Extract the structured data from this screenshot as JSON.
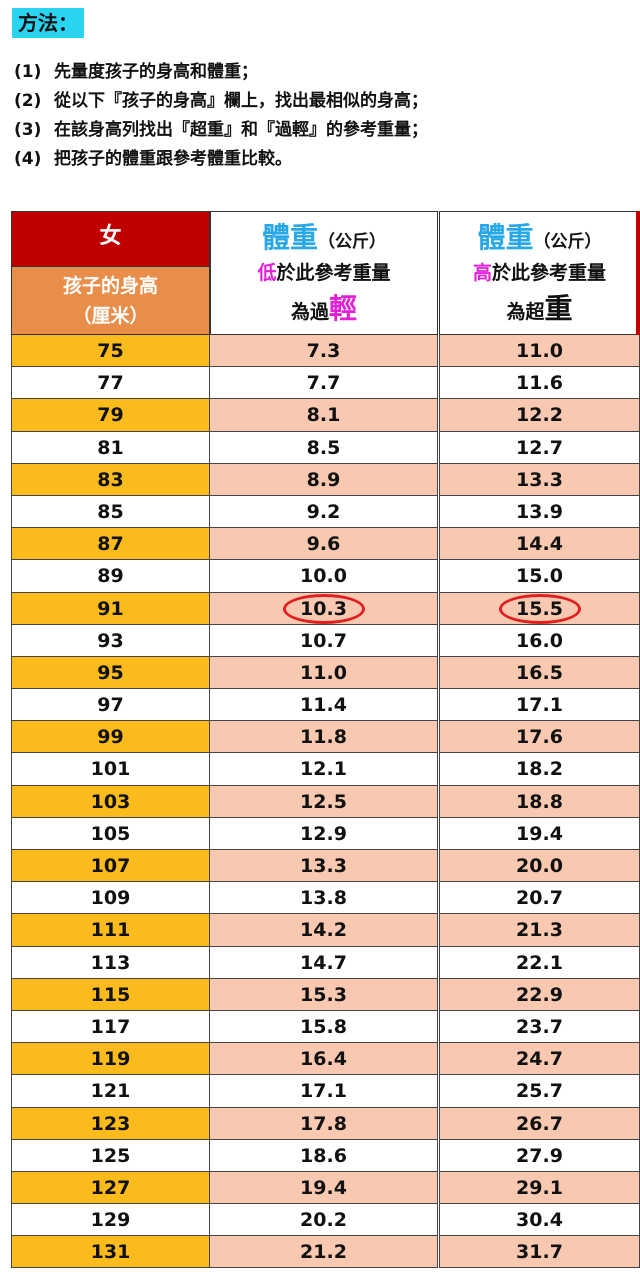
{
  "title": "方法：",
  "steps": [
    {
      "num": "(1)",
      "text": "先量度孩子的身高和體重；"
    },
    {
      "num": "(2)",
      "text": "從以下『孩子的身高』欄上，找出最相似的身高；"
    },
    {
      "num": "(3)",
      "text": "在該身高列找出『超重』和『過輕』的參考重量；"
    },
    {
      "num": "(4)",
      "text": "把孩子的體重跟參考體重比較。"
    }
  ],
  "header": {
    "gender": "女",
    "height_label_1": "孩子的身高",
    "height_label_2": "（厘米）",
    "weight_word": "體重",
    "weight_unit": "（公斤）",
    "light_prefix": "低",
    "light_mid": "於此參考重量",
    "light_end_a": "為過",
    "light_end_b": "輕",
    "heavy_prefix": "高",
    "heavy_mid": "於此參考重量",
    "heavy_end_a": "為超",
    "heavy_end_b": "重"
  },
  "rows": [
    {
      "h": "75",
      "light": "7.3",
      "heavy": "11.0"
    },
    {
      "h": "77",
      "light": "7.7",
      "heavy": "11.6"
    },
    {
      "h": "79",
      "light": "8.1",
      "heavy": "12.2"
    },
    {
      "h": "81",
      "light": "8.5",
      "heavy": "12.7"
    },
    {
      "h": "83",
      "light": "8.9",
      "heavy": "13.3"
    },
    {
      "h": "85",
      "light": "9.2",
      "heavy": "13.9"
    },
    {
      "h": "87",
      "light": "9.6",
      "heavy": "14.4"
    },
    {
      "h": "89",
      "light": "10.0",
      "heavy": "15.0"
    },
    {
      "h": "91",
      "light": "10.3",
      "heavy": "15.5",
      "circled": true
    },
    {
      "h": "93",
      "light": "10.7",
      "heavy": "16.0"
    },
    {
      "h": "95",
      "light": "11.0",
      "heavy": "16.5"
    },
    {
      "h": "97",
      "light": "11.4",
      "heavy": "17.1"
    },
    {
      "h": "99",
      "light": "11.8",
      "heavy": "17.6"
    },
    {
      "h": "101",
      "light": "12.1",
      "heavy": "18.2"
    },
    {
      "h": "103",
      "light": "12.5",
      "heavy": "18.8"
    },
    {
      "h": "105",
      "light": "12.9",
      "heavy": "19.4"
    },
    {
      "h": "107",
      "light": "13.3",
      "heavy": "20.0"
    },
    {
      "h": "109",
      "light": "13.8",
      "heavy": "20.7"
    },
    {
      "h": "111",
      "light": "14.2",
      "heavy": "21.3"
    },
    {
      "h": "113",
      "light": "14.7",
      "heavy": "22.1"
    },
    {
      "h": "115",
      "light": "15.3",
      "heavy": "22.9"
    },
    {
      "h": "117",
      "light": "15.8",
      "heavy": "23.7"
    },
    {
      "h": "119",
      "light": "16.4",
      "heavy": "24.7"
    },
    {
      "h": "121",
      "light": "17.1",
      "heavy": "25.7"
    },
    {
      "h": "123",
      "light": "17.8",
      "heavy": "26.7"
    },
    {
      "h": "125",
      "light": "18.6",
      "heavy": "27.9"
    },
    {
      "h": "127",
      "light": "19.4",
      "heavy": "29.1"
    },
    {
      "h": "129",
      "light": "20.2",
      "heavy": "30.4"
    },
    {
      "h": "131",
      "light": "21.2",
      "heavy": "31.7"
    }
  ],
  "colors": {
    "title_bg": "#2ad3f0",
    "gender_bg": "#c00000",
    "height_header_bg": "#e88e4a",
    "height_odd_bg": "#fbbb1c",
    "value_odd_bg": "#f8c9b0",
    "weight_word": "#28a8e8",
    "highlight_pink": "#e31fd8",
    "circle": "#e02020"
  }
}
